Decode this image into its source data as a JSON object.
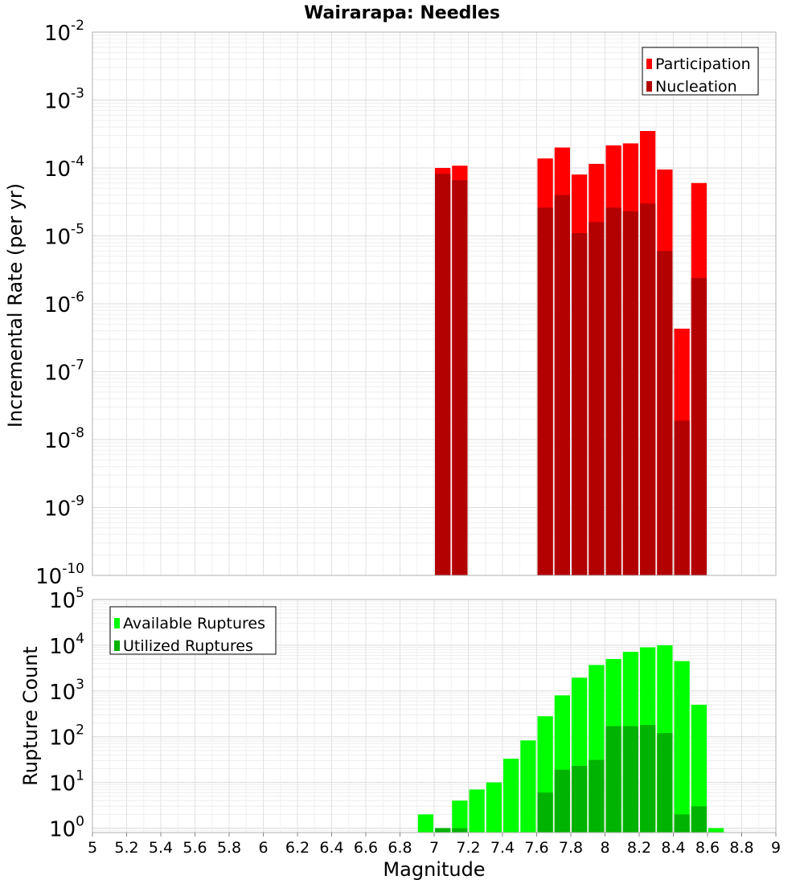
{
  "chart_data": [
    {
      "type": "bar",
      "title": "Wairarapa: Needles",
      "xlabel": "",
      "ylabel": "Incremental Rate (per yr)",
      "yscale": "log",
      "ylim": [
        1e-10,
        0.01
      ],
      "xlim": [
        5,
        9
      ],
      "grid": true,
      "legend_position": "top-right",
      "bin_width": 0.1,
      "x": [
        7.05,
        7.15,
        7.65,
        7.75,
        7.85,
        7.95,
        8.05,
        8.15,
        8.25,
        8.35,
        8.45,
        8.55
      ],
      "series": [
        {
          "name": "Participation",
          "color": "#ff0000",
          "values": [
            0.0001,
            0.000108,
            0.000138,
            0.0002,
            8e-05,
            0.000115,
            0.000215,
            0.00023,
            0.00035,
            9.5e-05,
            4.3e-07,
            6e-05
          ]
        },
        {
          "name": "Nucleation",
          "color": "#b30000",
          "values": [
            8.2e-05,
            6.6e-05,
            2.6e-05,
            4e-05,
            1.1e-05,
            1.6e-05,
            2.6e-05,
            2.3e-05,
            3e-05,
            6e-06,
            1.9e-08,
            2.4e-06
          ]
        }
      ]
    },
    {
      "type": "bar",
      "title": "",
      "xlabel": "Magnitude",
      "ylabel": "Rupture Count",
      "yscale": "log",
      "ylim": [
        0.8,
        100000
      ],
      "xlim": [
        5,
        9
      ],
      "grid": true,
      "legend_position": "top-left",
      "bin_width": 0.1,
      "x": [
        6.95,
        7.05,
        7.15,
        7.25,
        7.35,
        7.45,
        7.55,
        7.65,
        7.75,
        7.85,
        7.95,
        8.05,
        8.15,
        8.25,
        8.35,
        8.45,
        8.55,
        8.65
      ],
      "series": [
        {
          "name": "Available Ruptures",
          "color": "#00ff00",
          "values": [
            2,
            1,
            4,
            7,
            10,
            33,
            83,
            280,
            800,
            1950,
            3700,
            5000,
            7200,
            9000,
            10000,
            4500,
            500,
            1
          ]
        },
        {
          "name": "Utilized Ruptures",
          "color": "#00b300",
          "values": [
            0,
            1,
            1,
            0,
            0,
            0,
            0,
            6,
            19,
            23,
            31,
            170,
            170,
            180,
            120,
            2,
            3,
            0
          ]
        }
      ],
      "xticks": [
        "5",
        "5.2",
        "5.4",
        "5.6",
        "5.8",
        "6",
        "6.2",
        "6.4",
        "6.6",
        "6.8",
        "7",
        "7.2",
        "7.4",
        "7.6",
        "7.8",
        "8",
        "8.2",
        "8.4",
        "8.6",
        "8.8",
        "9"
      ]
    }
  ]
}
